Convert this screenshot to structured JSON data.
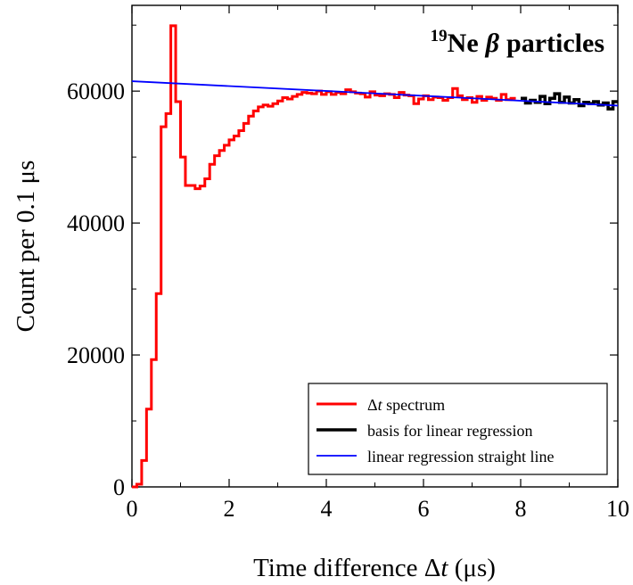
{
  "chart_data": {
    "type": "line",
    "title": "",
    "annotation": {
      "superscript": "19",
      "text": "Ne",
      "symbol": "β",
      "rest": "particles"
    },
    "xlabel": {
      "prefix": "Time difference Δ",
      "var": "t",
      "suffix": " (μs)"
    },
    "ylabel": "Count per 0.1 μs",
    "xlim": [
      0,
      10
    ],
    "ylim": [
      0,
      73000
    ],
    "xticks": [
      0,
      2,
      4,
      6,
      8,
      10
    ],
    "xtick_labels": [
      "0",
      "2",
      "4",
      "6",
      "8",
      "10"
    ],
    "yticks": [
      0,
      20000,
      40000,
      60000
    ],
    "ytick_labels": [
      "0",
      "20000",
      "40000",
      "60000"
    ],
    "grid": false,
    "legend_position": "bottom-right",
    "bin_width": 0.1,
    "series": [
      {
        "name": "Δt spectrum",
        "legend_prefix": "Δ",
        "legend_var": "t",
        "legend_suffix": " spectrum",
        "color": "#ff0000",
        "x_start": 0.1,
        "values": [
          400,
          4000,
          11800,
          19300,
          29300,
          54600,
          56600,
          69900,
          58400,
          50000,
          45700,
          45700,
          45200,
          45600,
          46700,
          48900,
          50200,
          51000,
          51800,
          52600,
          53200,
          54000,
          55100,
          56200,
          57000,
          57600,
          57900,
          57700,
          58100,
          58500,
          59000,
          58800,
          59200,
          59500,
          59800,
          59700,
          59600,
          60000,
          59500,
          59900,
          59500,
          59800,
          59600,
          60200,
          59900,
          59700,
          59600,
          59100,
          59900,
          59400,
          59300,
          59600,
          59500,
          59000,
          59800,
          59400,
          59300,
          58100,
          58800,
          59300,
          58700,
          59100,
          59000,
          58600,
          59000,
          60400,
          59300,
          58700,
          59000,
          58300,
          59200,
          58600,
          59100,
          58900,
          58600,
          59500,
          58700,
          58900
        ]
      },
      {
        "name": "basis for linear regression",
        "color": "#000000",
        "x_start": 8.0,
        "values": [
          58900,
          58200,
          58600,
          58300,
          59200,
          58100,
          58900,
          59600,
          58300,
          59100,
          58200,
          58700,
          57800,
          58300,
          58100,
          58400,
          57900,
          58200,
          57300,
          58400
        ]
      },
      {
        "name": "linear regression straight line",
        "color": "#0000ff",
        "x": [
          0,
          10
        ],
        "y": [
          61500,
          57800
        ]
      }
    ]
  }
}
